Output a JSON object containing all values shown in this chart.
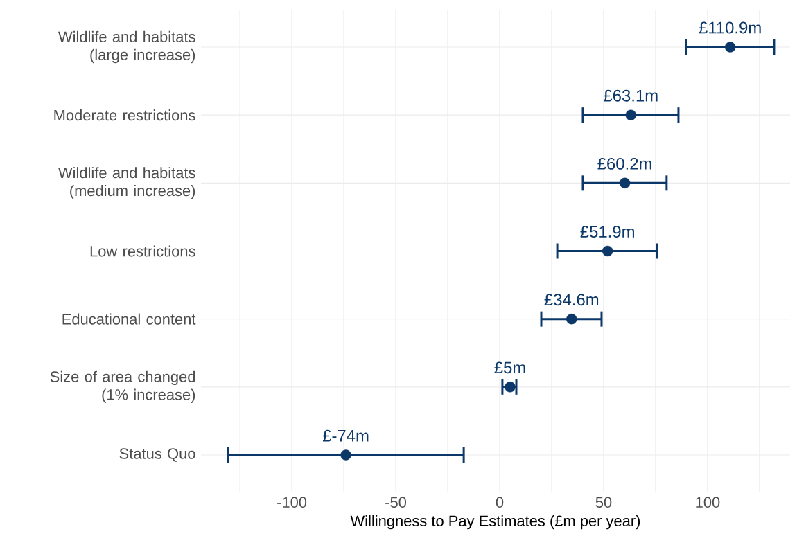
{
  "chart_data": {
    "type": "scatter",
    "orientation": "horizontal",
    "xlabel": "Willingness to Pay Estimates (£m per year)",
    "categories": [
      "Wildlife and habitats (large increase)",
      "Moderate restrictions",
      "Wildlife and habitats (medium increase)",
      "Low restrictions",
      "Educational content",
      "Size of area changed (1% increase)",
      "Status Quo"
    ],
    "values": [
      110.9,
      63.1,
      60.2,
      51.9,
      34.6,
      5,
      -74
    ],
    "errors": [
      [
        89.7,
        132
      ],
      [
        40,
        86
      ],
      [
        40,
        80.3
      ],
      [
        27.7,
        75.7
      ],
      [
        20,
        49
      ],
      [
        1.3,
        8
      ],
      [
        -130.7,
        -17.3
      ]
    ],
    "value_labels": [
      "£110.9m",
      "£63.1m",
      "£60.2m",
      "£51.9m",
      "£34.6m",
      "£5m",
      "£-74m"
    ],
    "color": "#0b3868",
    "marker": "circle",
    "grid": true,
    "xlim": [
      -143.7,
      139.7
    ],
    "xticks": [
      {
        "value": -125,
        "label": null
      },
      -100,
      {
        "value": -75,
        "label": null
      },
      -50,
      {
        "value": -25,
        "label": null
      },
      0,
      {
        "value": 25,
        "label": null
      },
      50,
      {
        "value": 75,
        "label": null
      },
      100,
      {
        "value": 125,
        "label": null
      }
    ]
  }
}
